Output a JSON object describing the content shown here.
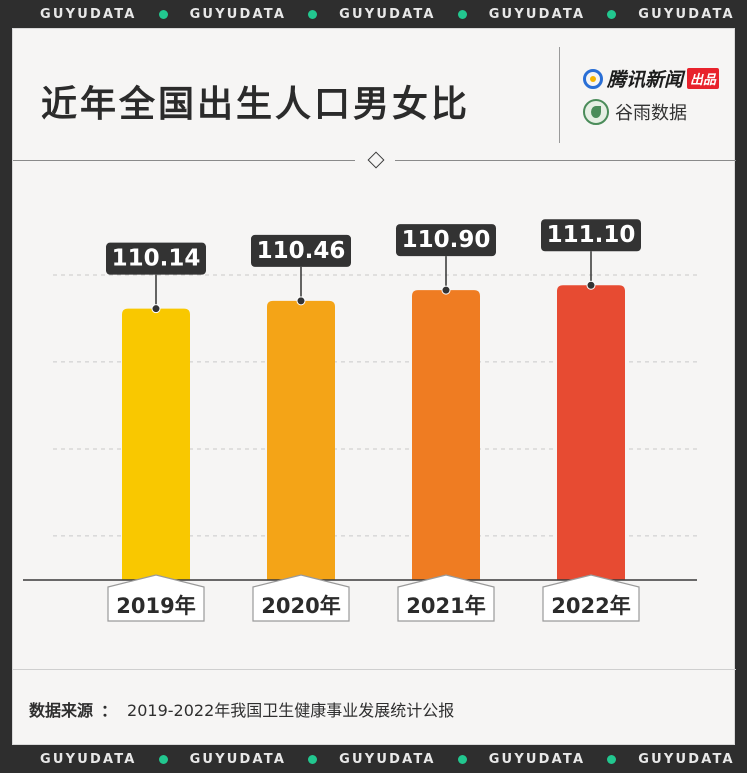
{
  "ribbon": {
    "word": "GUYUDATA",
    "accent": "#22c78f"
  },
  "header": {
    "title": "近年全国出生人口男女比",
    "logo_tencent": "腾讯新闻",
    "logo_badge": "出品",
    "logo_guyu": "谷雨数据"
  },
  "chart_data": {
    "type": "bar",
    "title": "近年全国出生人口男女比",
    "categories": [
      "2019年",
      "2020年",
      "2021年",
      "2022年"
    ],
    "values": [
      110.14,
      110.46,
      110.9,
      111.1
    ],
    "value_labels": [
      "110.14",
      "110.46",
      "110.90",
      "111.10"
    ],
    "colors": [
      "#f9c800",
      "#f4a417",
      "#ef7c22",
      "#e74b32"
    ],
    "grid": true,
    "legend": "none"
  },
  "footer": {
    "source_label": "数据来源",
    "source_colon": "：",
    "source_text": "2019-2022年我国卫生健康事业发展统计公报"
  }
}
